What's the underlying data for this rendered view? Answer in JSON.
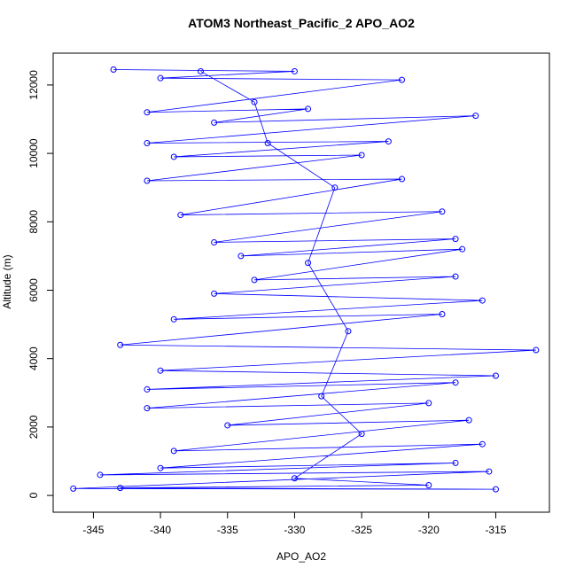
{
  "chart_data": {
    "type": "line",
    "markers": "open-circle",
    "title": "ATOM3 Northeast_Pacific_2 APO_AO2",
    "x_label": "APO_AO2",
    "y_label": "Altitude (m)",
    "xlim": [
      -348,
      -311
    ],
    "ylim": [
      -490,
      12930
    ],
    "xticks": [
      -345,
      -340,
      -335,
      -330,
      -325,
      -320,
      -315
    ],
    "yticks": [
      0,
      2000,
      4000,
      6000,
      8000,
      10000,
      12000
    ],
    "grid": false,
    "series": [
      {
        "color": "#0000ff",
        "x": [
          -343.5,
          -330,
          -340,
          -322,
          -341,
          -329,
          -336,
          -316.5,
          -341,
          -323,
          -339,
          -325,
          -341,
          -322,
          -338.5,
          -319,
          -336,
          -318,
          -334,
          -317.5,
          -333,
          -318,
          -336,
          -316,
          -339,
          -319,
          -343,
          -312,
          -340,
          -315,
          -341,
          -318,
          -341,
          -320,
          -335,
          -317,
          -339,
          -316,
          -340,
          -318,
          -344.5,
          -315.5,
          -346.5,
          -315,
          -343,
          -320,
          -330,
          -325,
          -328,
          -326,
          -329,
          -327,
          -332,
          -333,
          -337
        ],
        "values": [
          12450,
          12400,
          12200,
          12150,
          11200,
          11300,
          10900,
          11100,
          10300,
          10350,
          9900,
          9950,
          9200,
          9250,
          8200,
          8300,
          7400,
          7500,
          7000,
          7200,
          6300,
          6400,
          5900,
          5700,
          5150,
          5300,
          4400,
          4250,
          3650,
          3500,
          3100,
          3300,
          2550,
          2700,
          2050,
          2200,
          1300,
          1500,
          800,
          950,
          600,
          700,
          200,
          180,
          220,
          300,
          500,
          1800,
          2900,
          4800,
          6800,
          9000,
          10300,
          11500,
          12400
        ]
      }
    ]
  }
}
